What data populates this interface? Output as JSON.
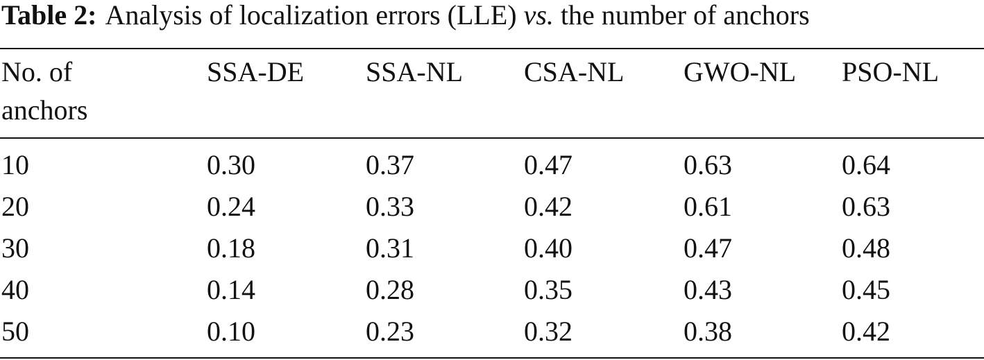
{
  "caption": {
    "label": "Table 2:",
    "text_before": "Analysis of localization errors (LLE)",
    "emphasis": "vs.",
    "text_after": "the number of anchors"
  },
  "table": {
    "header": [
      "No. of anchors",
      "SSA-DE",
      "SSA-NL",
      "CSA-NL",
      "GWO-NL",
      "PSO-NL"
    ],
    "rows": [
      [
        "10",
        "0.30",
        "0.37",
        "0.47",
        "0.63",
        "0.64"
      ],
      [
        "20",
        "0.24",
        "0.33",
        "0.42",
        "0.61",
        "0.63"
      ],
      [
        "30",
        "0.18",
        "0.31",
        "0.40",
        "0.47",
        "0.48"
      ],
      [
        "40",
        "0.14",
        "0.28",
        "0.35",
        "0.43",
        "0.45"
      ],
      [
        "50",
        "0.10",
        "0.23",
        "0.32",
        "0.38",
        "0.42"
      ]
    ]
  }
}
